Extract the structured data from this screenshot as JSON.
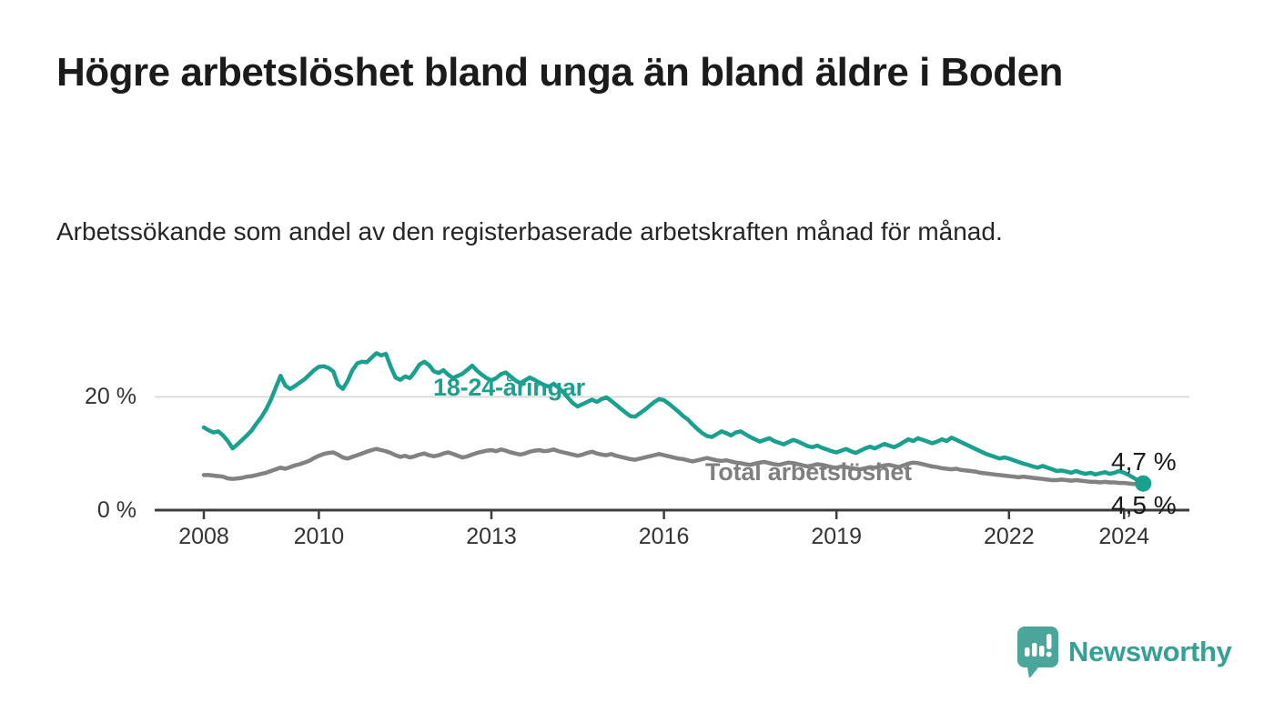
{
  "title": "Högre arbetslöshet bland unga än bland äldre i Boden",
  "subtitle": "Arbetssökande som andel av den registerbaserade arbetskraften månad för månad.",
  "branding": {
    "name": "Newsworthy",
    "icon": "bar-chart-speech-bubble-icon",
    "color": "#35a096",
    "icon_color": "#4aa59b"
  },
  "colors": {
    "youth_line": "#1aa08e",
    "total_line": "#828282",
    "axis": "#3d3d3d",
    "gridline": "#d6d6d6",
    "text": "#1b1b1b"
  },
  "chart_data": {
    "type": "line",
    "title": "Högre arbetslöshet bland unga än bland äldre i Boden",
    "subtitle": "Arbetssökande som andel av den registerbaserade arbetskraften månad för månad.",
    "unit": "%",
    "grid": "horizontal, only at 20 %",
    "legend_position": "inline labels on lines",
    "xlim": [
      2007.1,
      2025.2
    ],
    "ylim": [
      0,
      30
    ],
    "x_ticks": [
      {
        "value": 2008,
        "label": "2008"
      },
      {
        "value": 2010,
        "label": "2010"
      },
      {
        "value": 2013,
        "label": "2013"
      },
      {
        "value": 2016,
        "label": "2016"
      },
      {
        "value": 2019,
        "label": "2019"
      },
      {
        "value": 2022,
        "label": "2022"
      },
      {
        "value": 2024,
        "label": "2024"
      }
    ],
    "y_ticks": [
      {
        "value": 0,
        "label": "0 %"
      },
      {
        "value": 20,
        "label": "20 %"
      }
    ],
    "series": [
      {
        "name": "Total arbetslöshet",
        "color": "#828282",
        "end_label": "4,5 %",
        "end_marker": false,
        "x_start": 2008.0,
        "x_step_months": 1,
        "values": [
          6.2,
          6.2,
          6.1,
          6.0,
          5.9,
          5.6,
          5.5,
          5.6,
          5.7,
          5.9,
          6.0,
          6.2,
          6.4,
          6.6,
          6.9,
          7.2,
          7.5,
          7.3,
          7.6,
          7.9,
          8.1,
          8.4,
          8.7,
          9.2,
          9.6,
          9.9,
          10.1,
          10.2,
          9.8,
          9.3,
          9.1,
          9.4,
          9.7,
          10.0,
          10.3,
          10.6,
          10.8,
          10.6,
          10.4,
          10.1,
          9.7,
          9.4,
          9.6,
          9.3,
          9.5,
          9.8,
          10.0,
          9.7,
          9.5,
          9.7,
          10.0,
          10.2,
          9.9,
          9.6,
          9.3,
          9.5,
          9.8,
          10.1,
          10.3,
          10.5,
          10.6,
          10.4,
          10.7,
          10.5,
          10.2,
          10.0,
          9.8,
          10.0,
          10.3,
          10.5,
          10.6,
          10.4,
          10.5,
          10.7,
          10.4,
          10.2,
          10.0,
          9.8,
          9.6,
          9.8,
          10.1,
          10.3,
          10.0,
          9.8,
          9.7,
          9.9,
          9.6,
          9.4,
          9.2,
          9.0,
          8.9,
          9.1,
          9.3,
          9.5,
          9.7,
          9.9,
          9.7,
          9.5,
          9.3,
          9.1,
          9.0,
          8.8,
          8.6,
          8.8,
          9.0,
          9.2,
          9.0,
          8.8,
          8.7,
          8.8,
          8.6,
          8.4,
          8.3,
          8.1,
          8.0,
          8.2,
          8.4,
          8.5,
          8.3,
          8.1,
          8.0,
          8.2,
          8.4,
          8.3,
          8.1,
          7.9,
          7.7,
          7.9,
          8.1,
          8.0,
          7.8,
          7.6,
          7.5,
          7.7,
          7.6,
          7.4,
          7.3,
          7.2,
          7.4,
          7.6,
          7.5,
          7.7,
          7.9,
          8.0,
          7.8,
          7.6,
          7.9,
          8.2,
          8.4,
          8.3,
          8.1,
          7.9,
          7.7,
          7.6,
          7.4,
          7.3,
          7.2,
          7.3,
          7.1,
          7.0,
          6.9,
          6.8,
          6.6,
          6.5,
          6.4,
          6.3,
          6.2,
          6.1,
          6.0,
          5.9,
          5.8,
          5.9,
          5.8,
          5.7,
          5.6,
          5.5,
          5.4,
          5.3,
          5.3,
          5.4,
          5.3,
          5.2,
          5.3,
          5.2,
          5.1,
          5.0,
          5.0,
          4.9,
          5.0,
          4.9,
          4.9,
          4.8,
          4.8,
          4.7,
          4.6,
          4.6,
          4.5
        ]
      },
      {
        "name": "18-24-åringar",
        "color": "#1aa08e",
        "end_label": "4,7 %",
        "end_marker": true,
        "x_start": 2008.0,
        "x_step_months": 1,
        "values": [
          14.6,
          14.1,
          13.7,
          13.9,
          13.2,
          12.2,
          10.9,
          11.6,
          12.4,
          13.2,
          14.1,
          15.3,
          16.4,
          17.8,
          19.5,
          21.6,
          23.7,
          22.0,
          21.4,
          21.9,
          22.5,
          23.1,
          23.9,
          24.7,
          25.3,
          25.4,
          25.1,
          24.5,
          22.1,
          21.4,
          22.8,
          24.7,
          25.9,
          26.2,
          26.1,
          26.9,
          27.7,
          27.3,
          27.6,
          25.3,
          23.4,
          23.0,
          23.6,
          23.3,
          24.4,
          25.7,
          26.2,
          25.6,
          24.5,
          24.2,
          24.7,
          23.9,
          23.3,
          23.7,
          24.1,
          24.8,
          25.5,
          24.6,
          23.9,
          23.3,
          22.9,
          23.3,
          24.0,
          24.3,
          23.6,
          22.9,
          22.4,
          22.9,
          23.4,
          23.0,
          22.5,
          22.1,
          21.8,
          22.3,
          21.6,
          20.8,
          19.8,
          18.9,
          18.3,
          18.7,
          19.1,
          19.5,
          19.1,
          19.6,
          19.9,
          19.3,
          18.6,
          17.9,
          17.2,
          16.6,
          16.5,
          17.1,
          17.7,
          18.4,
          19.1,
          19.6,
          19.4,
          18.8,
          18.1,
          17.4,
          16.6,
          16.0,
          15.1,
          14.3,
          13.6,
          13.1,
          12.9,
          13.4,
          13.9,
          13.6,
          13.2,
          13.7,
          13.9,
          13.4,
          12.9,
          12.5,
          12.1,
          12.4,
          12.7,
          12.2,
          11.9,
          11.6,
          12.0,
          12.4,
          12.1,
          11.7,
          11.3,
          11.1,
          11.4,
          11.0,
          10.7,
          10.4,
          10.2,
          10.5,
          10.8,
          10.4,
          10.1,
          10.5,
          10.9,
          11.2,
          10.9,
          11.3,
          11.7,
          11.4,
          11.1,
          11.5,
          12.0,
          12.5,
          12.2,
          12.7,
          12.4,
          12.1,
          11.8,
          12.1,
          12.5,
          12.2,
          12.8,
          12.4,
          12.0,
          11.6,
          11.2,
          10.8,
          10.4,
          10.0,
          9.7,
          9.4,
          9.1,
          9.3,
          9.1,
          8.8,
          8.5,
          8.2,
          8.0,
          7.7,
          7.5,
          7.8,
          7.5,
          7.2,
          6.9,
          7.0,
          6.8,
          6.6,
          6.9,
          6.6,
          6.4,
          6.6,
          6.3,
          6.5,
          6.7,
          6.4,
          6.6,
          6.9,
          6.6,
          6.2,
          5.7,
          5.2,
          4.7
        ]
      }
    ]
  },
  "labels": {
    "youth_series": "18-24-åringar",
    "total_series": "Total arbetslöshet",
    "youth_end_value": "4,7 %",
    "total_end_value": "4,5 %",
    "y_axis_20": "20 %",
    "y_axis_0": "0 %"
  }
}
